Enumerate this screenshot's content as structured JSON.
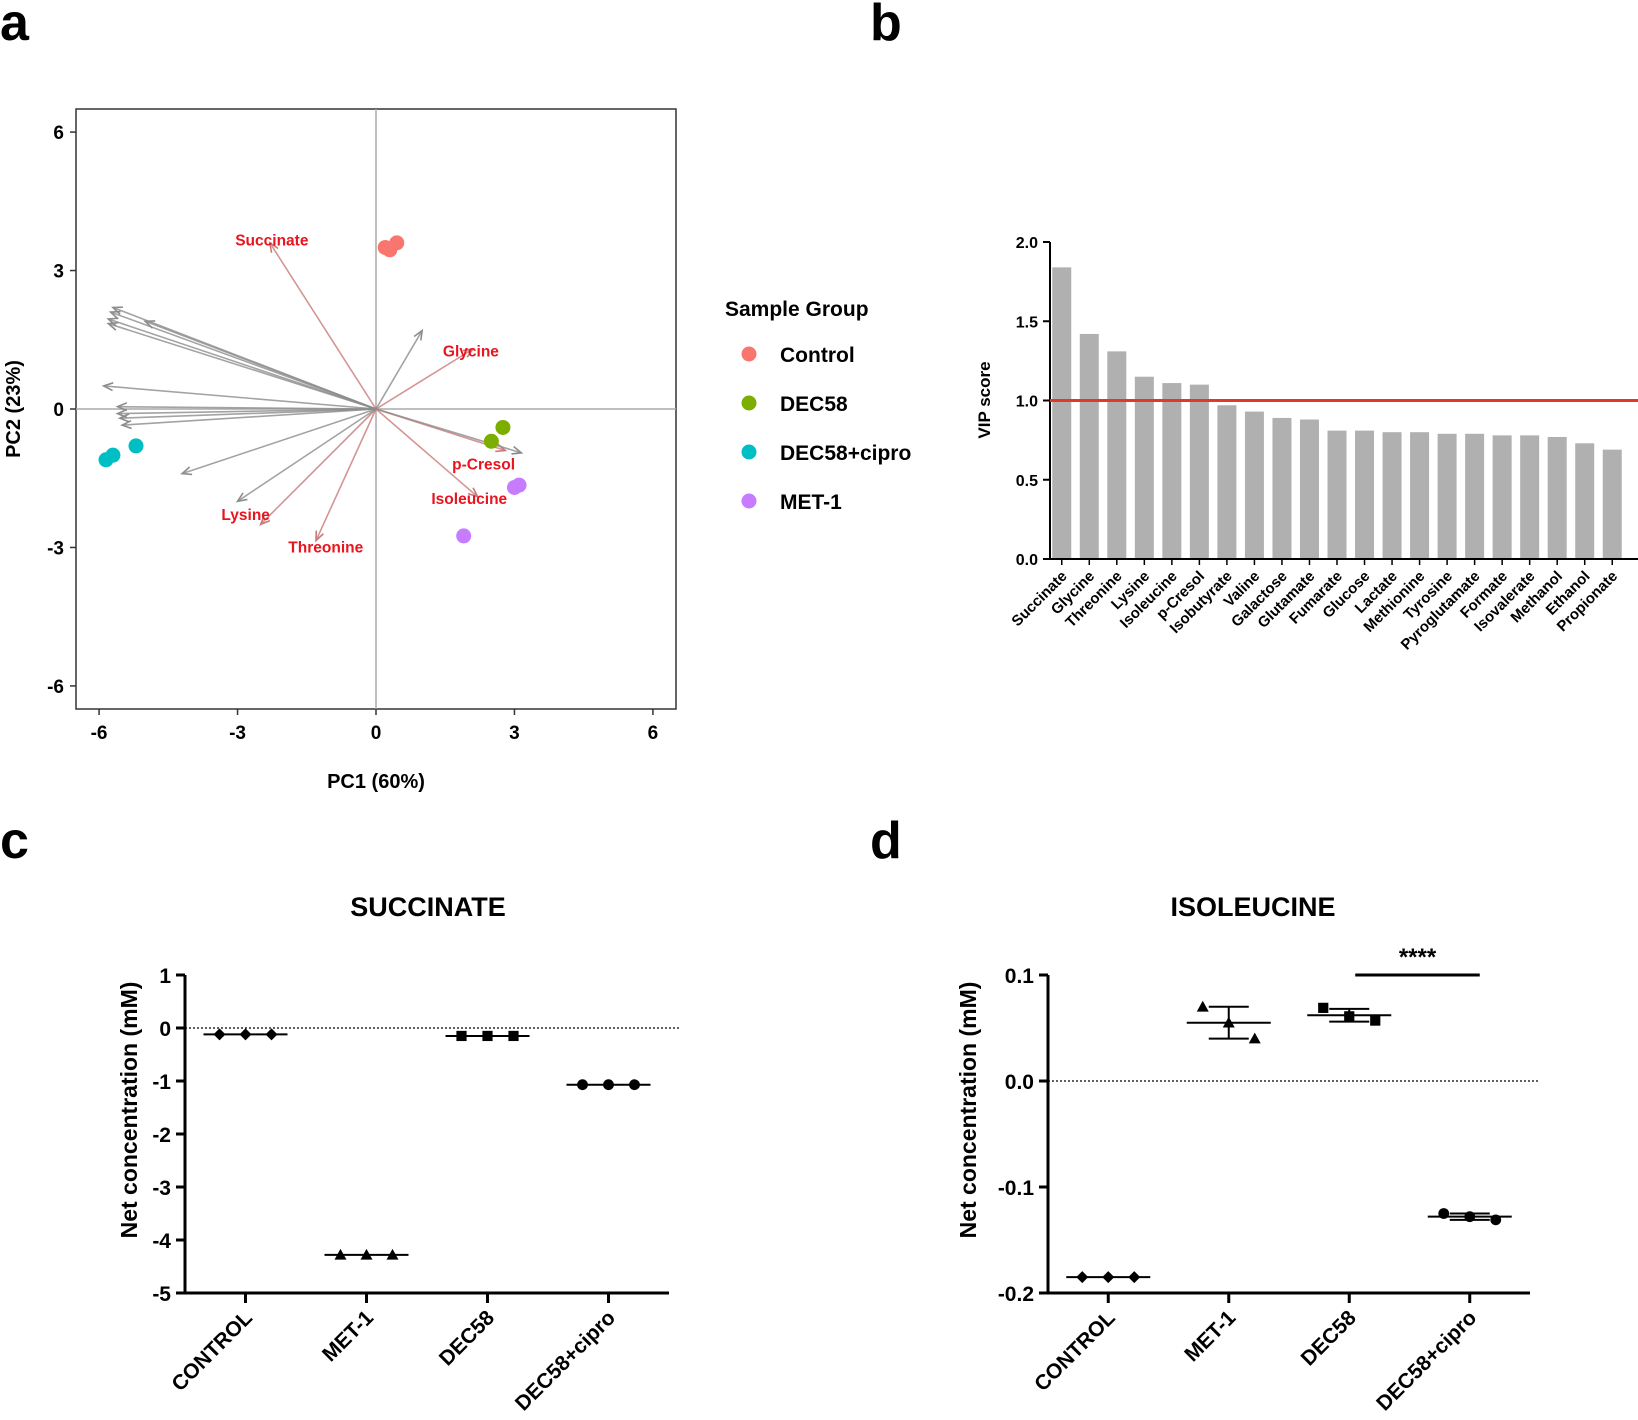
{
  "chart_data": [
    {
      "panel": "a",
      "type": "scatter",
      "title": "",
      "xlabel": "PC1 (60%)",
      "ylabel": "PC2 (23%)",
      "xlim": [
        -6.5,
        6.5
      ],
      "ylim": [
        -6.5,
        6.5
      ],
      "xticks": [
        -6,
        -3,
        0,
        3,
        6
      ],
      "yticks": [
        -6,
        -3,
        0,
        3,
        6
      ],
      "legend": {
        "title": "Sample Group",
        "position": "right",
        "entries": [
          {
            "name": "Control",
            "color": "#F8766D"
          },
          {
            "name": "DEC58",
            "color": "#7CAE00"
          },
          {
            "name": "DEC58+cipro",
            "color": "#00BFC4"
          },
          {
            "name": "MET-1",
            "color": "#C77CFF"
          }
        ]
      },
      "series": [
        {
          "name": "Control",
          "color": "#F8766D",
          "points": [
            [
              0.2,
              3.5
            ],
            [
              0.3,
              3.45
            ],
            [
              0.45,
              3.6
            ]
          ]
        },
        {
          "name": "DEC58",
          "color": "#7CAE00",
          "points": [
            [
              2.5,
              -0.7
            ],
            [
              2.75,
              -0.4
            ]
          ]
        },
        {
          "name": "DEC58+cipro",
          "color": "#00BFC4",
          "points": [
            [
              -5.85,
              -1.1
            ],
            [
              -5.7,
              -1.0
            ],
            [
              -5.2,
              -0.8
            ]
          ]
        },
        {
          "name": "MET-1",
          "color": "#C77CFF",
          "points": [
            [
              3.0,
              -1.7
            ],
            [
              3.1,
              -1.65
            ],
            [
              1.9,
              -2.75
            ]
          ]
        }
      ],
      "loadings": [
        {
          "label": "Succinate",
          "x": -2.3,
          "y": 3.6,
          "highlight": true
        },
        {
          "label": "Glycine",
          "x": 2.1,
          "y": 1.3,
          "highlight": true
        },
        {
          "label": "p-Cresol",
          "x": 2.8,
          "y": -0.9,
          "highlight": true
        },
        {
          "label": "Isoleucine",
          "x": 2.2,
          "y": -1.9,
          "highlight": true
        },
        {
          "label": "Lysine",
          "x": -2.5,
          "y": -2.5,
          "highlight": true
        },
        {
          "label": "Threonine",
          "x": -1.3,
          "y": -2.85,
          "highlight": true
        },
        {
          "label": "",
          "x": -5.7,
          "y": 2.2,
          "highlight": false
        },
        {
          "label": "",
          "x": -5.75,
          "y": 2.1,
          "highlight": false
        },
        {
          "label": "",
          "x": -5.8,
          "y": 1.95,
          "highlight": false
        },
        {
          "label": "",
          "x": -5.8,
          "y": 1.85,
          "highlight": false
        },
        {
          "label": "",
          "x": -5.0,
          "y": 1.9,
          "highlight": false
        },
        {
          "label": "",
          "x": 1.0,
          "y": 1.7,
          "highlight": false
        },
        {
          "label": "",
          "x": -5.9,
          "y": 0.5,
          "highlight": false
        },
        {
          "label": "",
          "x": -5.6,
          "y": 0.05,
          "highlight": false
        },
        {
          "label": "",
          "x": -5.6,
          "y": -0.1,
          "highlight": false
        },
        {
          "label": "",
          "x": -5.55,
          "y": -0.2,
          "highlight": false
        },
        {
          "label": "",
          "x": -5.5,
          "y": -0.35,
          "highlight": false
        },
        {
          "label": "",
          "x": -4.2,
          "y": -1.4,
          "highlight": false
        },
        {
          "label": "",
          "x": -3.0,
          "y": -2.0,
          "highlight": false
        },
        {
          "label": "",
          "x": 3.15,
          "y": -0.95,
          "highlight": false
        }
      ]
    },
    {
      "panel": "b",
      "type": "bar",
      "title": "",
      "xlabel": "",
      "ylabel": "VIP score",
      "ylim": [
        0,
        2.0
      ],
      "yticks": [
        "0.0",
        "0.5",
        "1.0",
        "1.5",
        "2.0"
      ],
      "threshold": 1.0,
      "threshold_color": "#E0382A",
      "bar_color": "#B0B0B0",
      "categories": [
        "Succinate",
        "Glycine",
        "Threonine",
        "Lysine",
        "Isoleucine",
        "p-Cresol",
        "Isobutyrate",
        "Valine",
        "Galactose",
        "Glutamate",
        "Fumarate",
        "Glucose",
        "Lactate",
        "Methionine",
        "Tyrosine",
        "Pyroglutamate",
        "Formate",
        "Isovalerate",
        "Methanol",
        "Ethanol",
        "Propionate"
      ],
      "values": [
        1.84,
        1.42,
        1.31,
        1.15,
        1.11,
        1.1,
        0.97,
        0.93,
        0.89,
        0.88,
        0.81,
        0.81,
        0.8,
        0.8,
        0.79,
        0.79,
        0.78,
        0.78,
        0.77,
        0.73,
        0.69
      ]
    },
    {
      "panel": "c",
      "type": "scatter",
      "title": "SUCCINATE",
      "xlabel": "",
      "ylabel": "Net concentration (mM)",
      "ylim": [
        -5,
        1
      ],
      "yticks": [
        "1",
        "0",
        "-1",
        "-2",
        "-3",
        "-4",
        "-5"
      ],
      "categories": [
        "CONTROL",
        "MET-1",
        "DEC58",
        "DEC58+cipro"
      ],
      "markers": [
        "diamond",
        "triangle",
        "square",
        "circle"
      ],
      "values": [
        [
          -0.12,
          -0.12,
          -0.12
        ],
        [
          -4.28,
          -4.28,
          -4.28
        ],
        [
          -0.15,
          -0.15,
          -0.15
        ],
        [
          -1.07,
          -1.07,
          -1.07
        ]
      ],
      "means": [
        -0.12,
        -4.28,
        -0.15,
        -1.07
      ],
      "sd": [
        0,
        0,
        0,
        0
      ]
    },
    {
      "panel": "d",
      "type": "scatter",
      "title": "ISOLEUCINE",
      "xlabel": "",
      "ylabel": "Net concentration (mM)",
      "ylim": [
        -0.2,
        0.1
      ],
      "yticks": [
        "0.1",
        "0.0",
        "-0.1",
        "-0.2"
      ],
      "categories": [
        "CONTROL",
        "MET-1",
        "DEC58",
        "DEC58+cipro"
      ],
      "markers": [
        "diamond",
        "triangle",
        "square",
        "circle"
      ],
      "values": [
        [
          -0.185,
          -0.185,
          -0.185
        ],
        [
          0.07,
          0.055,
          0.04
        ],
        [
          0.069,
          0.061,
          0.057
        ],
        [
          -0.125,
          -0.128,
          -0.131
        ]
      ],
      "means": [
        -0.185,
        0.055,
        0.062,
        -0.128
      ],
      "sd": [
        0,
        0.015,
        0.006,
        0.003
      ],
      "significance": "****"
    }
  ],
  "panel_letters": [
    "a",
    "b",
    "c",
    "d"
  ]
}
